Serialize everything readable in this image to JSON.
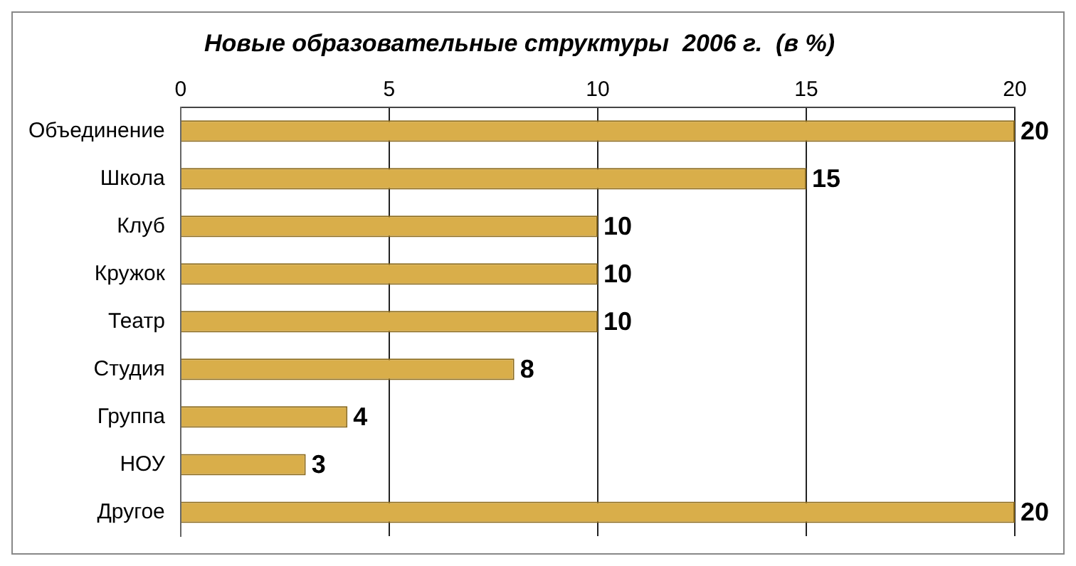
{
  "chart_data": {
    "type": "bar",
    "orientation": "horizontal",
    "title": "Новые образовательные структуры  2006 г.  (в %)",
    "categories": [
      "Объединение",
      "Школа",
      "Клуб",
      "Кружок",
      "Театр",
      "Студия",
      "Группа",
      "НОУ",
      "Другое"
    ],
    "values": [
      20,
      15,
      10,
      10,
      10,
      8,
      4,
      3,
      20
    ],
    "color": "#d9ae4a",
    "xlim": [
      0,
      20
    ],
    "xticks": [
      0,
      5,
      10,
      15,
      20
    ],
    "grid": "x",
    "data_labels": true,
    "legend": false
  }
}
